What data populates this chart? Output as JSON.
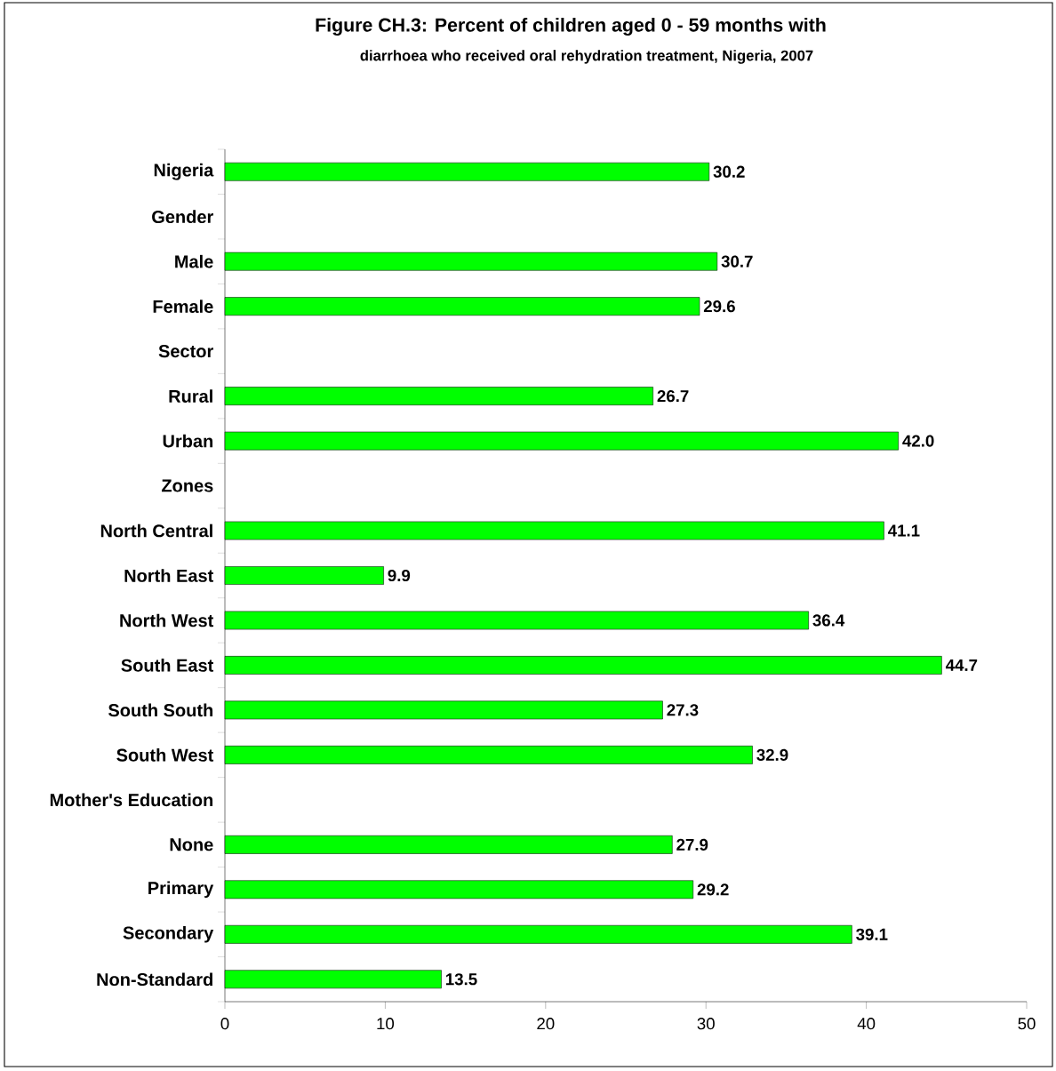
{
  "chart_data": {
    "type": "bar",
    "orientation": "horizontal",
    "title": "Figure CH.3: Percent of children aged 0 - 59 months with",
    "subtitle": "diarrhoea who received oral rehydration treatment, Nigeria, 2007",
    "categories": [
      "Nigeria",
      "Gender",
      "Male",
      "Female",
      "Sector",
      "Rural",
      "Urban",
      "Zones",
      "North Central",
      "North East",
      "North West",
      "South East",
      "South South",
      "South West",
      "Mother's Education",
      "None",
      "Primary",
      "Secondary",
      "Non-Standard"
    ],
    "values": [
      30.2,
      null,
      30.7,
      29.6,
      null,
      26.7,
      42.0,
      null,
      41.1,
      9.9,
      36.4,
      44.7,
      27.3,
      32.9,
      null,
      27.9,
      29.2,
      39.1,
      13.5
    ],
    "color": "#00ff00",
    "xlim": [
      0,
      50
    ],
    "xticks": [
      0,
      10,
      20,
      30,
      40,
      50
    ],
    "value_labels": [
      "30.2",
      null,
      "30.7",
      "29.6",
      null,
      "26.7",
      "42.0",
      null,
      "41.1",
      "9.9",
      "36.4",
      "44.7",
      "27.3",
      "32.9",
      null,
      "27.9",
      "29.2",
      "39.1",
      "13.5"
    ]
  }
}
